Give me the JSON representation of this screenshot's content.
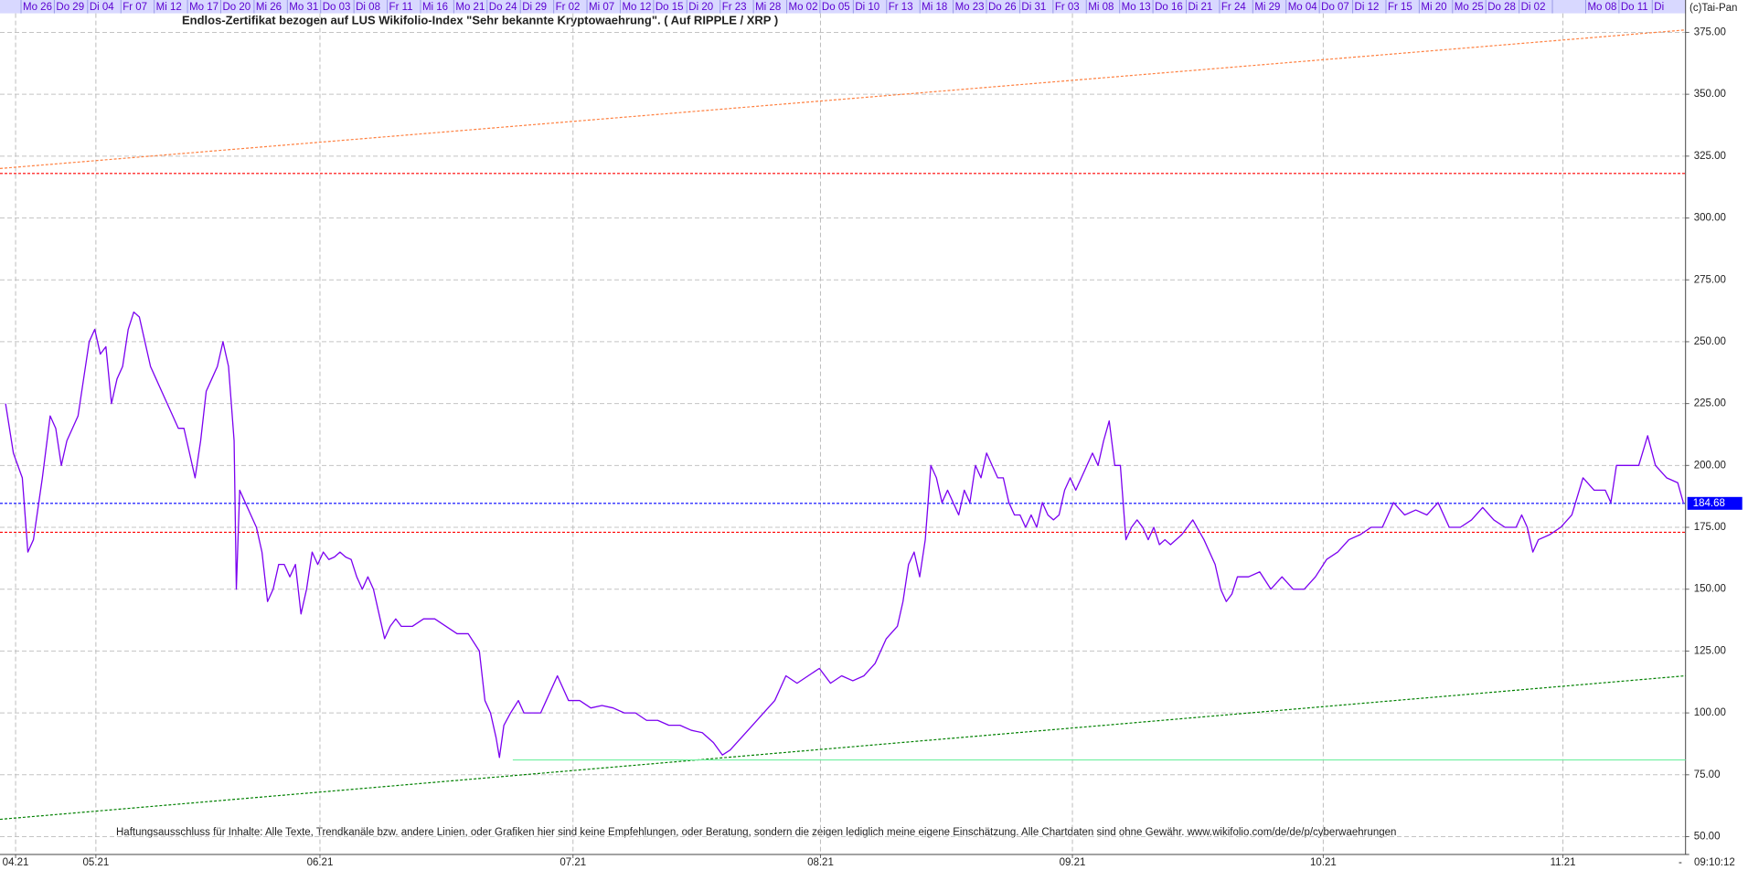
{
  "chart_data": {
    "type": "line",
    "title": "Endlos-Zertifikat bezogen auf LUS Wikifolio-Index \"Sehr bekannte Kryptowaehrung\". ( Auf RIPPLE / XRP )",
    "annotations": {
      "disclaimer": "Haftungsausschluss für Inhalte: Alle Texte, Trendkanäle bzw. andere Linien, oder Grafiken hier sind keine Empfehlungen, oder Beratung, sondern die zeigen lediglich meine eigene Einschätzung. Alle Chartdaten sind ohne Gewähr.  www.wikifolio.com/de/de/p/cyberwaehrungen",
      "copyright": "(c)Tai-Pan",
      "time": "09:10:12",
      "dash": "-"
    },
    "top_labels": [
      "Mo 26",
      "Do 29",
      "Di 04",
      "Fr 07",
      "Mi 12",
      "Mo 17",
      "Do 20",
      "Mi 26",
      "Mo 31",
      "Do 03",
      "Di 08",
      "Fr 11",
      "Mi 16",
      "Mo 21",
      "Do 24",
      "Di 29",
      "Fr 02",
      "Mi 07",
      "Mo 12",
      "Do 15",
      "Di 20",
      "Fr 23",
      "Mi 28",
      "Mo 02",
      "Do 05",
      "Di 10",
      "Fr 13",
      "Mi 18",
      "Mo 23",
      "Do 26",
      "Di 31",
      "Fr 03",
      "Mi 08",
      "Mo 13",
      "Do 16",
      "Di 21",
      "Fr 24",
      "Mi 29",
      "Mo 04",
      "Do 07",
      "Di 12",
      "Fr 15",
      "Mi 20",
      "Mo 25",
      "Do 28",
      "Di 02",
      null,
      "Mo 08",
      "Do 11",
      "Di"
    ],
    "x": [
      0.5,
      1.2,
      2,
      2.5,
      3,
      3.8,
      4.5,
      5,
      5.5,
      6,
      6.5,
      7,
      7.5,
      8,
      8.5,
      9,
      9.5,
      10,
      10.5,
      11,
      11.5,
      12,
      12.5,
      13,
      13.5,
      14,
      14.5,
      15,
      15.5,
      16,
      16.5,
      17,
      17.5,
      18,
      18.5,
      19,
      19.5,
      20,
      20.5,
      21,
      21.2,
      21.5,
      22,
      22.5,
      23,
      23.5,
      24,
      24.5,
      25,
      25.5,
      26,
      26.5,
      27,
      27.5,
      28,
      28.5,
      29,
      29.5,
      30,
      30.5,
      31,
      31.5,
      32,
      32.5,
      33,
      33.5,
      34,
      34.5,
      35,
      35.5,
      36,
      37,
      38,
      39,
      40,
      41,
      42,
      43,
      43.5,
      44,
      44.5,
      44.8,
      45.2,
      45.8,
      46.5,
      47,
      47.8,
      48.5,
      49,
      50,
      50.5,
      51,
      52,
      53,
      54,
      55,
      56,
      57,
      58,
      59,
      60,
      61,
      62,
      63,
      64,
      64.8,
      65.5,
      66.5,
      67.5,
      68.5,
      69.5,
      70.5,
      71.5,
      72.5,
      73.5,
      74.5,
      75.5,
      76.5,
      77.5,
      78.5,
      79.5,
      80.5,
      81,
      81.5,
      82,
      82.5,
      83,
      83.5,
      84,
      84.5,
      85,
      85.5,
      86,
      86.5,
      87,
      87.5,
      88,
      88.5,
      89,
      89.5,
      90,
      90.5,
      91,
      91.5,
      92,
      92.5,
      93,
      93.5,
      94,
      94.5,
      95,
      95.5,
      96,
      96.5,
      97,
      97.5,
      98,
      98.5,
      99,
      99.5,
      100,
      100.5,
      101,
      101.5,
      102,
      102.5,
      103,
      103.5,
      104,
      104.5,
      105,
      106,
      107,
      108,
      109,
      109.5,
      110,
      110.5,
      111,
      112,
      113,
      114,
      115,
      116,
      117,
      118,
      119,
      120,
      121,
      122,
      123,
      124,
      124.5,
      125,
      126,
      127,
      128,
      129,
      130,
      131,
      132,
      133,
      134,
      135,
      136,
      136.5,
      137,
      137.5,
      138,
      139,
      140,
      141,
      142,
      143,
      144,
      144.5,
      145,
      146,
      147,
      147.8,
      148.5,
      149.5,
      150.5,
      151
    ],
    "series": [
      {
        "color": "#7b00f0",
        "values": [
          225,
          205,
          195,
          165,
          170,
          195,
          220,
          215,
          200,
          210,
          215,
          220,
          235,
          250,
          255,
          245,
          248,
          225,
          235,
          240,
          255,
          262,
          260,
          250,
          240,
          235,
          230,
          225,
          220,
          215,
          215,
          205,
          195,
          210,
          230,
          235,
          240,
          250,
          240,
          210,
          150,
          190,
          185,
          180,
          175,
          165,
          145,
          150,
          160,
          160,
          155,
          160,
          140,
          150,
          165,
          160,
          165,
          162,
          163,
          165,
          163,
          162,
          155,
          150,
          155,
          150,
          140,
          130,
          135,
          138,
          135,
          135,
          138,
          138,
          135,
          132,
          132,
          125,
          105,
          100,
          90,
          82,
          95,
          100,
          105,
          100,
          100,
          100,
          105,
          115,
          110,
          105,
          105,
          102,
          103,
          102,
          100,
          100,
          97,
          97,
          95,
          95,
          93,
          92,
          88,
          83,
          85,
          90,
          95,
          100,
          105,
          115,
          112,
          115,
          118,
          112,
          115,
          113,
          115,
          120,
          130,
          135,
          145,
          160,
          165,
          155,
          170,
          200,
          195,
          185,
          190,
          185,
          180,
          190,
          185,
          200,
          195,
          205,
          200,
          195,
          195,
          185,
          180,
          180,
          175,
          180,
          175,
          185,
          180,
          178,
          180,
          190,
          195,
          190,
          195,
          200,
          205,
          200,
          210,
          218,
          200,
          200,
          170,
          175,
          178,
          175,
          170,
          175,
          168,
          170,
          168,
          172,
          178,
          170,
          160,
          150,
          145,
          148,
          155,
          155,
          157,
          150,
          155,
          150,
          150,
          155,
          162,
          165,
          170,
          172,
          175,
          175,
          180,
          185,
          180,
          182,
          180,
          185,
          175,
          175,
          178,
          183,
          178,
          175,
          175,
          180,
          175,
          165,
          170,
          172,
          175,
          180,
          195,
          190,
          190,
          185,
          200,
          200,
          200,
          212,
          200,
          195,
          193,
          185
        ]
      }
    ],
    "hlines": [
      {
        "value": 318,
        "color": "#ff0000",
        "show_label": false
      },
      {
        "value": 173,
        "color": "#ff0000",
        "show_label": false
      },
      {
        "value": 184.68,
        "color": "#0000ff",
        "show_label": true
      }
    ],
    "trendlines": [
      {
        "x": [
          0,
          151.2
        ],
        "values": [
          320,
          376
        ],
        "color": "#ff8040",
        "dashed": true
      },
      {
        "x": [
          0,
          151.2
        ],
        "values": [
          57,
          115
        ],
        "color": "#008000",
        "dashed": true
      },
      {
        "x": [
          46,
          151.2
        ],
        "values": [
          81,
          81
        ],
        "color": "#70f0a0",
        "dashed": false
      }
    ],
    "xlim": [
      0,
      151.2
    ],
    "xticks": [
      {
        "value": 1.4,
        "label": "04.21"
      },
      {
        "value": 8.6,
        "label": "05.21"
      },
      {
        "value": 28.7,
        "label": "06.21"
      },
      {
        "value": 51.4,
        "label": "07.21"
      },
      {
        "value": 73.6,
        "label": "08.21"
      },
      {
        "value": 96.2,
        "label": "09.21"
      },
      {
        "value": 118.7,
        "label": "10.21"
      },
      {
        "value": 140.2,
        "label": "11.21"
      }
    ],
    "ylim": [
      42.8,
      382.7
    ],
    "yticks": [
      {
        "value": 50,
        "label": "50.00"
      },
      {
        "value": 75,
        "label": "75.00"
      },
      {
        "value": 100,
        "label": "100.00"
      },
      {
        "value": 125,
        "label": "125.00"
      },
      {
        "value": 150,
        "label": "150.00"
      },
      {
        "value": 175,
        "label": "175.00"
      },
      {
        "value": 200,
        "label": "200.00"
      },
      {
        "value": 225,
        "label": "225.00"
      },
      {
        "value": 250,
        "label": "250.00"
      },
      {
        "value": 275,
        "label": "275.00"
      },
      {
        "value": 300,
        "label": "300.00"
      },
      {
        "value": 325,
        "label": "325.00"
      },
      {
        "value": 350,
        "label": "350.00"
      },
      {
        "value": 375,
        "label": "375.00"
      }
    ],
    "grid": true
  }
}
